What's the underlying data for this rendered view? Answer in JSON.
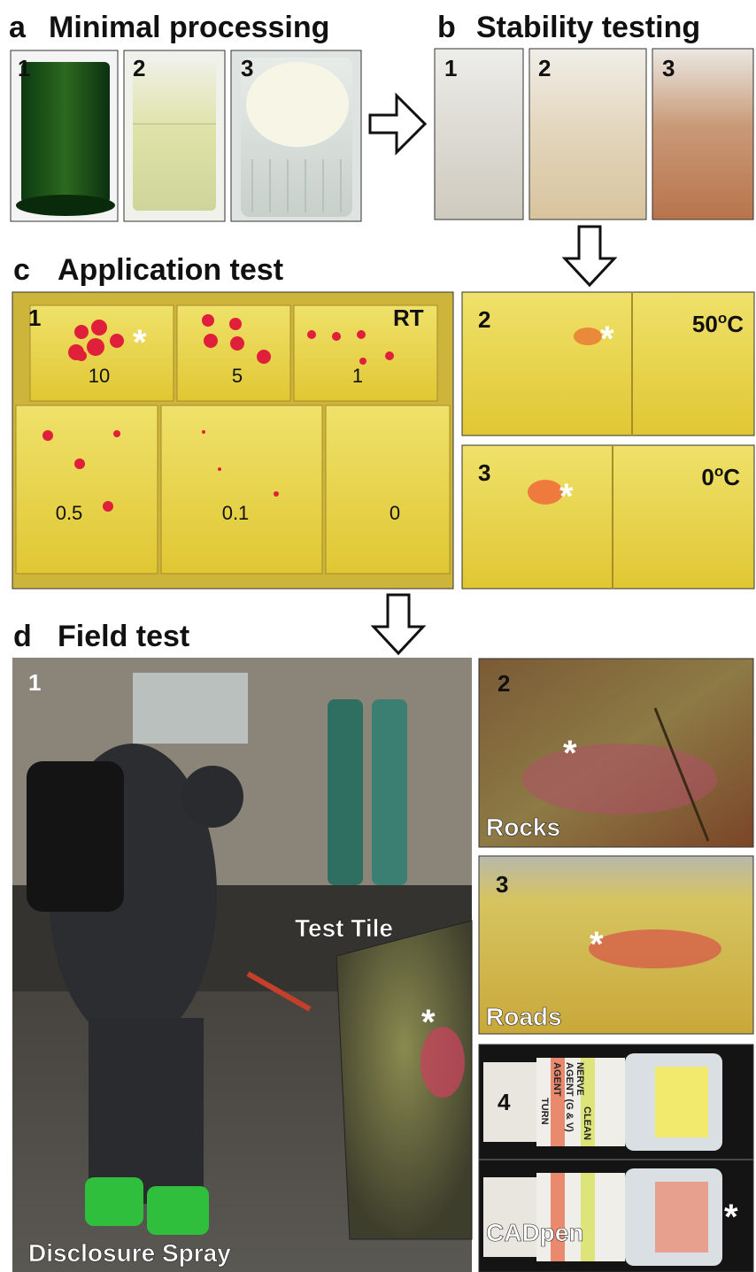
{
  "a": {
    "letter": "a",
    "title": "Minimal processing",
    "photos": [
      "1",
      "2",
      "3"
    ]
  },
  "b": {
    "letter": "b",
    "title": "Stability testing",
    "photos": [
      "1",
      "2",
      "3"
    ]
  },
  "c": {
    "letter": "c",
    "title": "Application test",
    "p1": {
      "label": "1",
      "condition": "RT",
      "tiles": [
        "10",
        "5",
        "1",
        "0.5",
        "0.1",
        "0"
      ],
      "marker": "*"
    },
    "p2": {
      "label": "2",
      "temp": "50",
      "temp_sup": "o",
      "temp_unit": "C",
      "marker": "*"
    },
    "p3": {
      "label": "3",
      "temp": "0",
      "temp_sup": "o",
      "temp_unit": "C",
      "marker": "*"
    }
  },
  "d": {
    "letter": "d",
    "title": "Field test",
    "p1": {
      "label": "1",
      "inset": "Test Tile",
      "caption": "Disclosure Spray",
      "marker": "*"
    },
    "p2": {
      "label": "2",
      "caption": "Rocks",
      "marker": "*"
    },
    "p3": {
      "label": "3",
      "caption": "Roads",
      "marker": "*"
    },
    "p4": {
      "label": "4",
      "caption": "CADpen",
      "marker": "*",
      "pen_text": [
        "NERVE",
        "AGENT (G & V)",
        "CLEAN",
        "AGENT",
        "TURN"
      ]
    }
  }
}
